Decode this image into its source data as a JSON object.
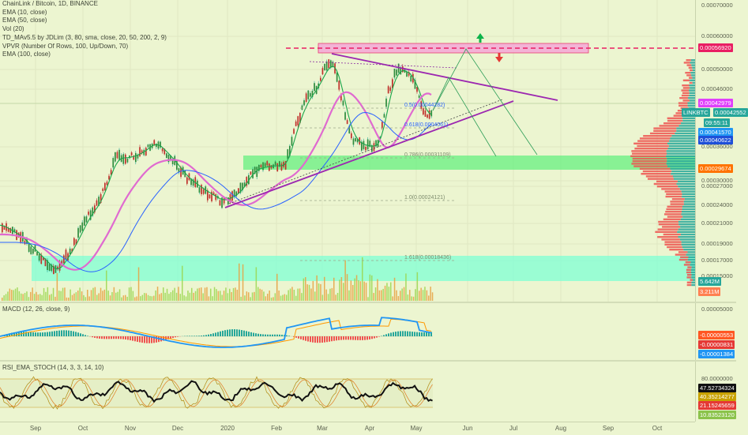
{
  "legend": {
    "symbol": "ChainLink / Bitcoin, 1D, BINANCE",
    "ema10": "EMA (10, close)",
    "ema50": "EMA (50, close)",
    "vol": "Vol (20)",
    "td": "TD_MAv5.5 by JDLim (3, 80, sma, close, 20, 50, 200, 2, 9)",
    "vpvr": "VPVR (Number Of Rows, 100, Up/Down, 70)",
    "ema100": "EMA (100, close)"
  },
  "macd_title": "MACD (12, 26, close, 9)",
  "rsi_title": "RSI_EMA_STOCH (14, 3, 3, 14, 10)",
  "price_ticks": [
    "0.00070000",
    "0.00060000",
    "0.00050000",
    "0.00046000",
    "0.00036000",
    "0.00030000",
    "0.00027000",
    "0.00024000",
    "0.00021000",
    "0.00019000",
    "0.00017000",
    "0.00015000"
  ],
  "price_badges": [
    {
      "text": "0.00056920",
      "color": "#e91e63"
    },
    {
      "text": "0.00042979",
      "color": "#e040fb"
    },
    {
      "text": "0.00042552",
      "color": "#26a69a"
    },
    {
      "text": "LINKBTC",
      "color": "#26a69a"
    },
    {
      "text": "09:55:11",
      "color": "#26a69a"
    },
    {
      "text": "0.00041570",
      "color": "#2196f3"
    },
    {
      "text": "0.00040622",
      "color": "#1e4fd8"
    },
    {
      "text": "0.00029674",
      "color": "#ff7300"
    },
    {
      "text": "5.642M",
      "color": "#26a69a"
    },
    {
      "text": "3.211M",
      "color": "#ff7f50"
    }
  ],
  "macd_ticks": [
    "0.00005000"
  ],
  "macd_badges": [
    {
      "text": "-0.00000553",
      "color": "#ff5722"
    },
    {
      "text": "-0.00000831",
      "color": "#e53935"
    },
    {
      "text": "-0.00001384",
      "color": "#2196f3"
    }
  ],
  "rsi_ticks": [
    "80.0000000"
  ],
  "rsi_badges": [
    {
      "text": "47.52734324",
      "color": "#111111"
    },
    {
      "text": "40.35214277",
      "color": "#c8a200"
    },
    {
      "text": "21.15245659",
      "color": "#e53935"
    },
    {
      "text": "10.83523120",
      "color": "#8bc34a"
    }
  ],
  "fib_labels": [
    "0.5(0.00044282)",
    "0.618(0.0004061)",
    "0.786(0.00031109)",
    "1.0(0.00024121)",
    "1.618(0.00018436)"
  ],
  "time_labels": [
    "Sep",
    "Oct",
    "Nov",
    "Dec",
    "2020",
    "Feb",
    "Mar",
    "Apr",
    "May",
    "Jun",
    "Jul",
    "Aug",
    "Sep",
    "Oct"
  ],
  "colors": {
    "up": "#26a69a",
    "down": "#ef5350",
    "ema10": "#e3009a",
    "ema50": "#2962ff",
    "ema_pink": "#e06ad0",
    "macd": "#2196f3",
    "signal": "#ff9800",
    "rsi": "#111111",
    "stoch": "#c89b20",
    "trend": "#9c27b0"
  }
}
